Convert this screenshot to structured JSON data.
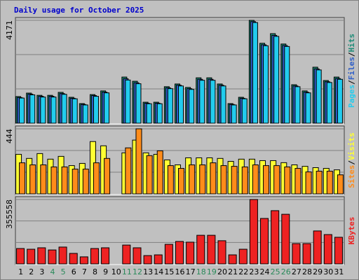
{
  "chart_data": [
    {
      "type": "bar",
      "title": "Daily usage for October 2025",
      "ylim": [
        0,
        4171
      ],
      "yticks": [
        4171
      ],
      "legend_separator": "/",
      "series": [
        {
          "name": "Hits",
          "color": "#1e8c78",
          "values": [
            1080,
            1220,
            1130,
            1130,
            1250,
            1050,
            795,
            1160,
            1310,
            0,
            1870,
            1700,
            850,
            850,
            1480,
            1590,
            1450,
            1840,
            1840,
            1590,
            795,
            1050,
            4171,
            3240,
            3630,
            3210,
            1560,
            1310,
            2270,
            1730,
            1870
          ]
        },
        {
          "name": "Files",
          "color": "#2f5fc8",
          "values": [
            1040,
            1180,
            1090,
            1090,
            1200,
            1010,
            760,
            1120,
            1260,
            0,
            1800,
            1640,
            810,
            810,
            1430,
            1540,
            1400,
            1780,
            1780,
            1540,
            760,
            1010,
            4120,
            3180,
            3560,
            3150,
            1510,
            1260,
            2200,
            1680,
            1810
          ]
        },
        {
          "name": "Pages",
          "color": "#22ccee",
          "values": [
            1020,
            1150,
            1060,
            1060,
            1170,
            990,
            740,
            1090,
            1230,
            0,
            1750,
            1600,
            790,
            790,
            1400,
            1510,
            1370,
            1740,
            1740,
            1510,
            740,
            990,
            4080,
            3140,
            3520,
            3110,
            1480,
            1230,
            2160,
            1650,
            1780
          ]
        }
      ]
    },
    {
      "type": "bar",
      "ylim": [
        0,
        444
      ],
      "yticks": [
        444
      ],
      "legend_separator": "/",
      "series": [
        {
          "name": "Visits",
          "color": "#ffff33",
          "values": [
            270,
            242,
            275,
            237,
            256,
            193,
            208,
            357,
            328,
            0,
            280,
            367,
            280,
            270,
            232,
            198,
            246,
            246,
            246,
            242,
            222,
            237,
            237,
            227,
            227,
            213,
            198,
            188,
            179,
            174,
            164
          ]
        },
        {
          "name": "Sites",
          "color": "#ff8c1a",
          "values": [
            212,
            198,
            198,
            184,
            184,
            169,
            169,
            212,
            242,
            0,
            314,
            444,
            261,
            294,
            193,
            174,
            198,
            198,
            212,
            193,
            188,
            184,
            198,
            193,
            193,
            184,
            174,
            150,
            155,
            155,
            130
          ]
        }
      ]
    },
    {
      "type": "bar",
      "ylim": [
        0,
        355558
      ],
      "yticks": [
        355558
      ],
      "categories": [
        "1",
        "2",
        "3",
        "4",
        "5",
        "6",
        "7",
        "8",
        "9",
        "10",
        "11",
        "12",
        "13",
        "14",
        "15",
        "16",
        "17",
        "18",
        "19",
        "20",
        "21",
        "22",
        "23",
        "24",
        "25",
        "26",
        "27",
        "28",
        "29",
        "30",
        "31"
      ],
      "category_colors": [
        "#000",
        "#000",
        "#000",
        "#2a8a5a",
        "#2a8a5a",
        "#000",
        "#000",
        "#000",
        "#000",
        "#000",
        "#2a8a5a",
        "#2a8a5a",
        "#000",
        "#000",
        "#000",
        "#000",
        "#000",
        "#2a8a5a",
        "#2a8a5a",
        "#000",
        "#000",
        "#000",
        "#000",
        "#000",
        "#2a8a5a",
        "#2a8a5a",
        "#000",
        "#000",
        "#000",
        "#000",
        "#000"
      ],
      "series": [
        {
          "name": "KBytes",
          "color": "#ee2222",
          "values": [
            85000,
            81000,
            89000,
            77000,
            93000,
            58000,
            39000,
            85000,
            89000,
            0,
            104000,
            89000,
            46000,
            50000,
            108000,
            124000,
            120000,
            158000,
            158000,
            128000,
            50000,
            81000,
            355558,
            251000,
            294000,
            274000,
            112000,
            112000,
            182000,
            162000,
            147000
          ]
        }
      ]
    }
  ]
}
